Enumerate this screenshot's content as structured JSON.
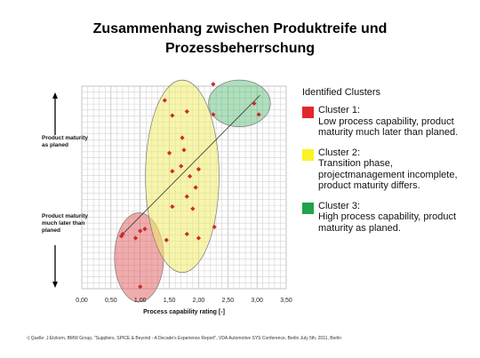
{
  "slide": {
    "title_line1": "Zusammenhang zwischen Produktreife und",
    "title_line2": "Prozessbeherrschung"
  },
  "chart_data": {
    "type": "scatter",
    "xlabel": "Process capability rating [-]",
    "xlim": [
      0,
      3.5
    ],
    "x_ticks": [
      "0,00",
      "0,50",
      "1,00",
      "1,50",
      "2,00",
      "2,50",
      "3,00",
      "3,50"
    ],
    "ylim": [
      0,
      10
    ],
    "y_axis_top_label": "Product maturity as planed",
    "y_axis_bottom_label": "Product maturity much later than planed",
    "grid": true,
    "point_color": "#cc2a2a",
    "points": [
      {
        "x": 1.0,
        "y": 0.1
      },
      {
        "x": 0.7,
        "y": 2.7
      },
      {
        "x": 0.68,
        "y": 2.6
      },
      {
        "x": 0.92,
        "y": 2.5
      },
      {
        "x": 1.0,
        "y": 2.85
      },
      {
        "x": 1.08,
        "y": 2.95
      },
      {
        "x": 1.42,
        "y": 9.3
      },
      {
        "x": 1.55,
        "y": 8.55
      },
      {
        "x": 1.8,
        "y": 8.75
      },
      {
        "x": 1.72,
        "y": 7.45
      },
      {
        "x": 1.75,
        "y": 6.85
      },
      {
        "x": 1.5,
        "y": 6.7
      },
      {
        "x": 1.7,
        "y": 6.05
      },
      {
        "x": 1.55,
        "y": 5.8
      },
      {
        "x": 1.85,
        "y": 5.55
      },
      {
        "x": 1.95,
        "y": 5.0
      },
      {
        "x": 2.0,
        "y": 5.9
      },
      {
        "x": 1.8,
        "y": 4.55
      },
      {
        "x": 1.55,
        "y": 4.05
      },
      {
        "x": 1.9,
        "y": 3.95
      },
      {
        "x": 1.45,
        "y": 2.4
      },
      {
        "x": 1.8,
        "y": 2.7
      },
      {
        "x": 2.0,
        "y": 2.5
      },
      {
        "x": 2.27,
        "y": 3.05
      },
      {
        "x": 2.25,
        "y": 10.1
      },
      {
        "x": 2.25,
        "y": 8.6
      },
      {
        "x": 2.95,
        "y": 9.15
      },
      {
        "x": 3.03,
        "y": 8.6
      }
    ],
    "trend_line": {
      "from": [
        0.65,
        2.55
      ],
      "to": [
        3.05,
        9.55
      ],
      "color": "#333333"
    },
    "clusters": [
      {
        "name": "Cluster 1",
        "color": "#e25a5a",
        "fill_opacity": 0.5,
        "cx": 0.98,
        "cy": 1.55,
        "rx": 0.42,
        "ry": 2.2
      },
      {
        "name": "Cluster 2",
        "color": "#f1ec6a",
        "fill_opacity": 0.55,
        "cx": 1.72,
        "cy": 5.55,
        "rx": 0.63,
        "ry": 4.75
      },
      {
        "name": "Cluster 3",
        "color": "#4fb96e",
        "fill_opacity": 0.45,
        "cx": 2.7,
        "cy": 9.15,
        "rx": 0.53,
        "ry": 1.15
      }
    ]
  },
  "legend": {
    "heading": "Identified Clusters",
    "items": [
      {
        "name": "Cluster 1:",
        "desc": "Low process capability, product maturity much later than planed.",
        "color": "#e0282c"
      },
      {
        "name": "Cluster 2:",
        "desc": "Transition phase, projectmanagement incomplete, product maturity differs.",
        "color": "#fbf225"
      },
      {
        "name": "Cluster 3:",
        "desc": "High process capability, product maturity as planed.",
        "color": "#22a24b"
      }
    ]
  },
  "footnote": "¹) Quelle: J.Etzkorn, BMW Group, \"Suppliers, SPICE & Beyond - A Decade's Experience Report\", VDA Automotive SYS Conference, Berlin July 5th, 2011, Berlin"
}
